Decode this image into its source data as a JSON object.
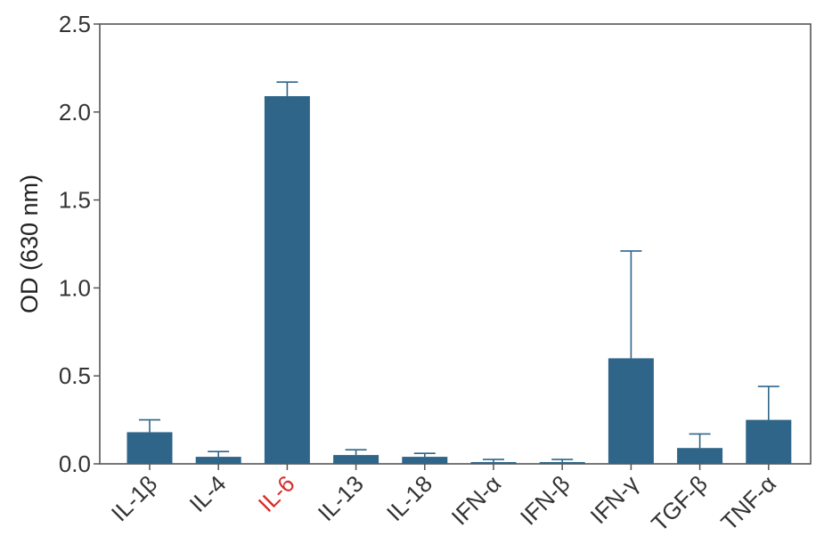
{
  "chart_data": {
    "type": "bar",
    "title": "",
    "xlabel": "",
    "ylabel": "OD (630 nm)",
    "ylim": [
      0,
      2.5
    ],
    "yticks": [
      "0.0",
      "0.5",
      "1.0",
      "1.5",
      "2.0",
      "2.5"
    ],
    "ytick_values": [
      0,
      0.5,
      1.0,
      1.5,
      2.0,
      2.5
    ],
    "categories": [
      "IL-1β",
      "IL-4",
      "IL-6",
      "IL-13",
      "IL-18",
      "IFN-α",
      "IFN-β",
      "IFN-γ",
      "TGF-β",
      "TNF-α"
    ],
    "values": [
      0.18,
      0.04,
      2.09,
      0.05,
      0.04,
      0.01,
      0.01,
      0.6,
      0.09,
      0.25
    ],
    "error_upper": [
      0.07,
      0.03,
      0.08,
      0.03,
      0.02,
      0.015,
      0.015,
      0.61,
      0.08,
      0.19
    ],
    "highlighted_category": "IL-6",
    "grid": false,
    "legend": "none",
    "colors": {
      "bar": "#2e6589",
      "error_bar": "#2e6589",
      "axis": "#555555",
      "tick_label": "#333333",
      "highlight_label": "#d92b2b"
    }
  }
}
